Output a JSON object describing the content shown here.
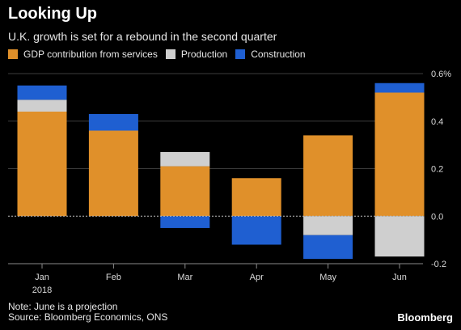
{
  "header": {
    "title": "Looking Up",
    "subtitle": "U.K. growth is set for a rebound in the second quarter"
  },
  "footer": {
    "note": "Note: June is a projection",
    "source": "Source: Bloomberg Economics, ONS",
    "brand": "Bloomberg"
  },
  "chart_data": {
    "type": "bar",
    "stacked": true,
    "categories": [
      "Jan",
      "Feb",
      "Mar",
      "Apr",
      "May",
      "Jun"
    ],
    "year_label": "2018",
    "series": [
      {
        "name": "GDP contribution from services",
        "color": "#e0902a",
        "values": [
          0.44,
          0.36,
          0.21,
          0.16,
          0.34,
          0.52
        ]
      },
      {
        "name": "Production",
        "color": "#cfcfcf",
        "values": [
          0.05,
          0.0,
          0.06,
          0.0,
          -0.08,
          -0.17
        ]
      },
      {
        "name": "Construction",
        "color": "#1f5fd1",
        "values": [
          0.06,
          0.07,
          -0.05,
          -0.12,
          -0.1,
          0.04
        ]
      }
    ],
    "ylim": [
      -0.2,
      0.6
    ],
    "yticks": [
      {
        "value": 0.6,
        "label": "0.6%"
      },
      {
        "value": 0.4,
        "label": "0.4"
      },
      {
        "value": 0.2,
        "label": "0.2"
      },
      {
        "value": 0.0,
        "label": "0.0"
      },
      {
        "value": -0.2,
        "label": "-0.2"
      }
    ],
    "grid": true,
    "legend_position": "top-left",
    "axis_color": "#8a8a8a",
    "grid_color": "#3c3c3c"
  }
}
